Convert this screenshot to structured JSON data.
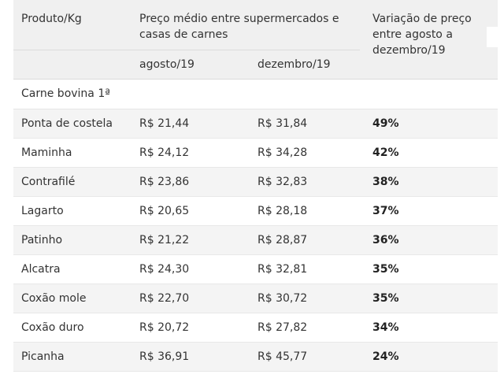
{
  "header": {
    "produto": "Produto/Kg",
    "preco_medio": "Preço médio entre supermercados e casas de carnes",
    "variacao": "Variação de preço entre agosto a dezembro/19",
    "agosto": "agosto/19",
    "dezembro": "dezembro/19"
  },
  "section": {
    "title": "Carne bovina 1ª"
  },
  "rows": [
    {
      "produto": "Ponta de costela",
      "agosto": "R$ 21,44",
      "dezembro": "R$ 31,84",
      "variacao": "49%"
    },
    {
      "produto": "Maminha",
      "agosto": "R$ 24,12",
      "dezembro": "R$ 34,28",
      "variacao": "42%"
    },
    {
      "produto": "Contrafilé",
      "agosto": "R$ 23,86",
      "dezembro": "R$ 32,83",
      "variacao": "38%"
    },
    {
      "produto": "Lagarto",
      "agosto": "R$ 20,65",
      "dezembro": "R$ 28,18",
      "variacao": "37%"
    },
    {
      "produto": "Patinho",
      "agosto": "R$ 21,22",
      "dezembro": "R$ 28,87",
      "variacao": "36%"
    },
    {
      "produto": "Alcatra",
      "agosto": "R$ 24,30",
      "dezembro": "R$ 32,81",
      "variacao": "35%"
    },
    {
      "produto": "Coxão mole",
      "agosto": "R$ 22,70",
      "dezembro": "R$ 30,72",
      "variacao": "35%"
    },
    {
      "produto": "Coxão duro",
      "agosto": "R$ 20,72",
      "dezembro": "R$ 27,82",
      "variacao": "34%"
    },
    {
      "produto": "Picanha",
      "agosto": "R$ 36,91",
      "dezembro": "R$ 45,77",
      "variacao": "24%"
    }
  ]
}
